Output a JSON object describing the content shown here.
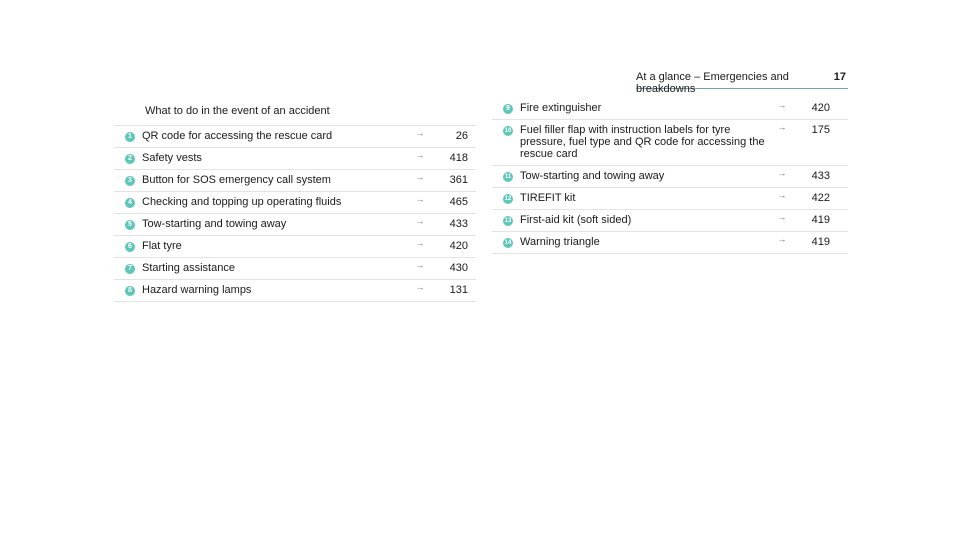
{
  "header": {
    "title": "At a glance – Emergencies and breakdowns",
    "page": "17"
  },
  "left": {
    "title": "What to do in the event of an accident",
    "items": [
      {
        "num": "1",
        "label": "QR code for accessing the rescue card",
        "arrow": "→",
        "page": "26"
      },
      {
        "num": "2",
        "label": "Safety vests",
        "arrow": "→",
        "page": "418"
      },
      {
        "num": "3",
        "label": "Button for SOS emergency call system",
        "arrow": "→",
        "page": "361"
      },
      {
        "num": "4",
        "label": "Checking and topping up operating fluids",
        "arrow": "→",
        "page": "465"
      },
      {
        "num": "5",
        "label": "Tow-starting and towing away",
        "arrow": "→",
        "page": "433"
      },
      {
        "num": "6",
        "label": "Flat tyre",
        "arrow": "→",
        "page": "420"
      },
      {
        "num": "7",
        "label": "Starting assistance",
        "arrow": "→",
        "page": "430"
      },
      {
        "num": "8",
        "label": "Hazard warning lamps",
        "arrow": "→",
        "page": "131"
      }
    ]
  },
  "right": {
    "items": [
      {
        "num": "9",
        "label": "Fire extinguisher",
        "arrow": "→",
        "page": "420"
      },
      {
        "num": "10",
        "label": "Fuel filler flap with instruction labels for tyre pressure, fuel type and QR code for accessing the rescue card",
        "arrow": "→",
        "page": "175"
      },
      {
        "num": "11",
        "label": "Tow-starting and towing away",
        "arrow": "→",
        "page": "433"
      },
      {
        "num": "12",
        "label": "TIREFIT kit",
        "arrow": "→",
        "page": "422"
      },
      {
        "num": "13",
        "label": "First-aid kit (soft sided)",
        "arrow": "→",
        "page": "419"
      },
      {
        "num": "14",
        "label": "Warning triangle",
        "arrow": "→",
        "page": "419"
      }
    ]
  }
}
